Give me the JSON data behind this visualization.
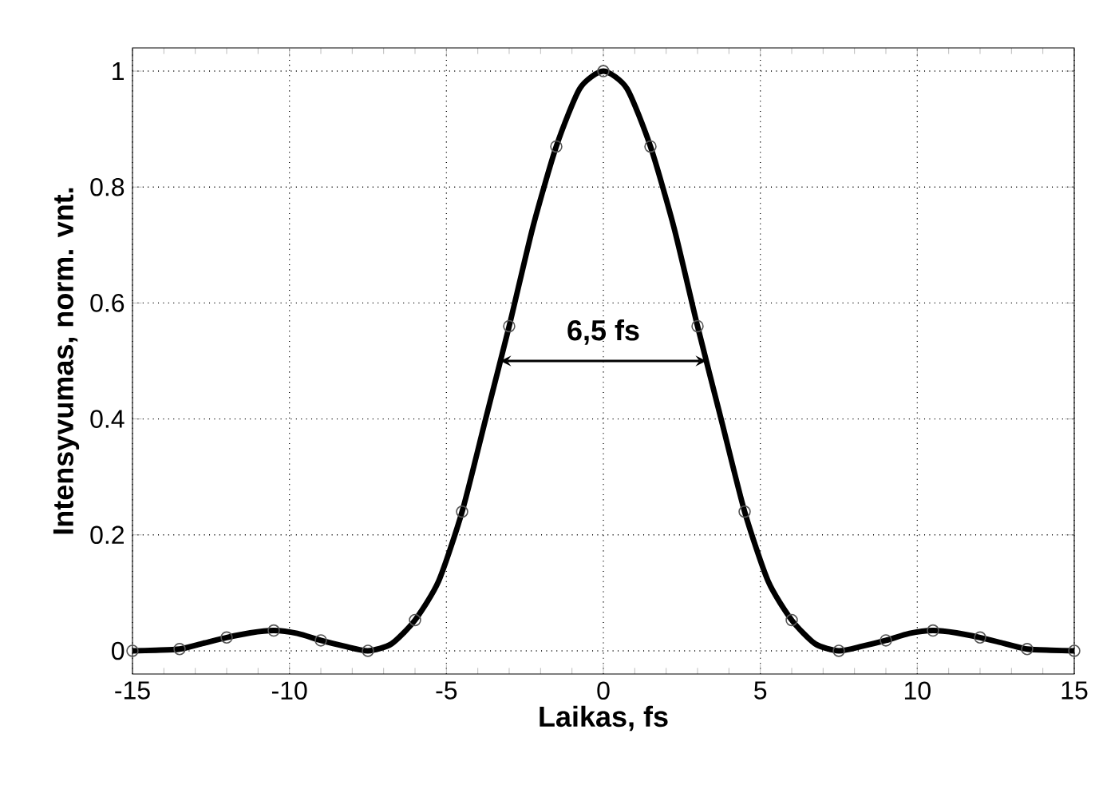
{
  "chart_data": {
    "type": "line",
    "xlabel": "Laikas, fs",
    "ylabel": "Intensyvumas, norm. vnt.",
    "xlim": [
      -15,
      15
    ],
    "xticks": [
      -15,
      -10,
      -5,
      0,
      5,
      10,
      15
    ],
    "ylim": [
      -0.04,
      1.04
    ],
    "yticks": [
      0,
      0.2,
      0.4,
      0.6,
      0.8,
      1
    ],
    "grid": true,
    "annotations": [
      "6,5 fs"
    ],
    "series": [
      {
        "color": "#000000",
        "marker": "none",
        "x": [
          -15,
          -14.25,
          -13.5,
          -12.75,
          -12,
          -11.25,
          -10.5,
          -9.75,
          -9,
          -8.25,
          -7.5,
          -6.75,
          -6,
          -5.25,
          -4.5,
          -3.75,
          -3,
          -2.25,
          -1.5,
          -0.75,
          0,
          0.75,
          1.5,
          2.25,
          3,
          3.75,
          4.5,
          5.25,
          6,
          6.75,
          7.5,
          8.25,
          9,
          9.75,
          10.5,
          11.25,
          12,
          12.75,
          13.5,
          14.25,
          15
        ],
        "values": [
          0,
          0.001,
          0.003,
          0.013,
          0.023,
          0.031,
          0.035,
          0.03,
          0.018,
          0.008,
          0,
          0.012,
          0.053,
          0.12,
          0.24,
          0.4,
          0.56,
          0.73,
          0.87,
          0.97,
          1,
          0.97,
          0.87,
          0.73,
          0.56,
          0.4,
          0.24,
          0.12,
          0.053,
          0.012,
          0,
          0.008,
          0.018,
          0.03,
          0.035,
          0.031,
          0.023,
          0.013,
          0.003,
          0.001,
          0
        ]
      },
      {
        "type": "scatter",
        "color": "#555555",
        "marker": "circle",
        "x": [
          -15,
          -13.5,
          -12,
          -10.5,
          -9,
          -7.5,
          -6,
          -4.5,
          -3,
          -1.5,
          0,
          1.5,
          3,
          4.5,
          6,
          7.5,
          9,
          10.5,
          12,
          13.5,
          15
        ],
        "values": [
          0,
          0.003,
          0.023,
          0.035,
          0.018,
          0,
          0.053,
          0.24,
          0.56,
          0.87,
          1,
          0.87,
          0.56,
          0.24,
          0.053,
          0,
          0.018,
          0.035,
          0.023,
          0.003,
          0
        ]
      }
    ]
  }
}
